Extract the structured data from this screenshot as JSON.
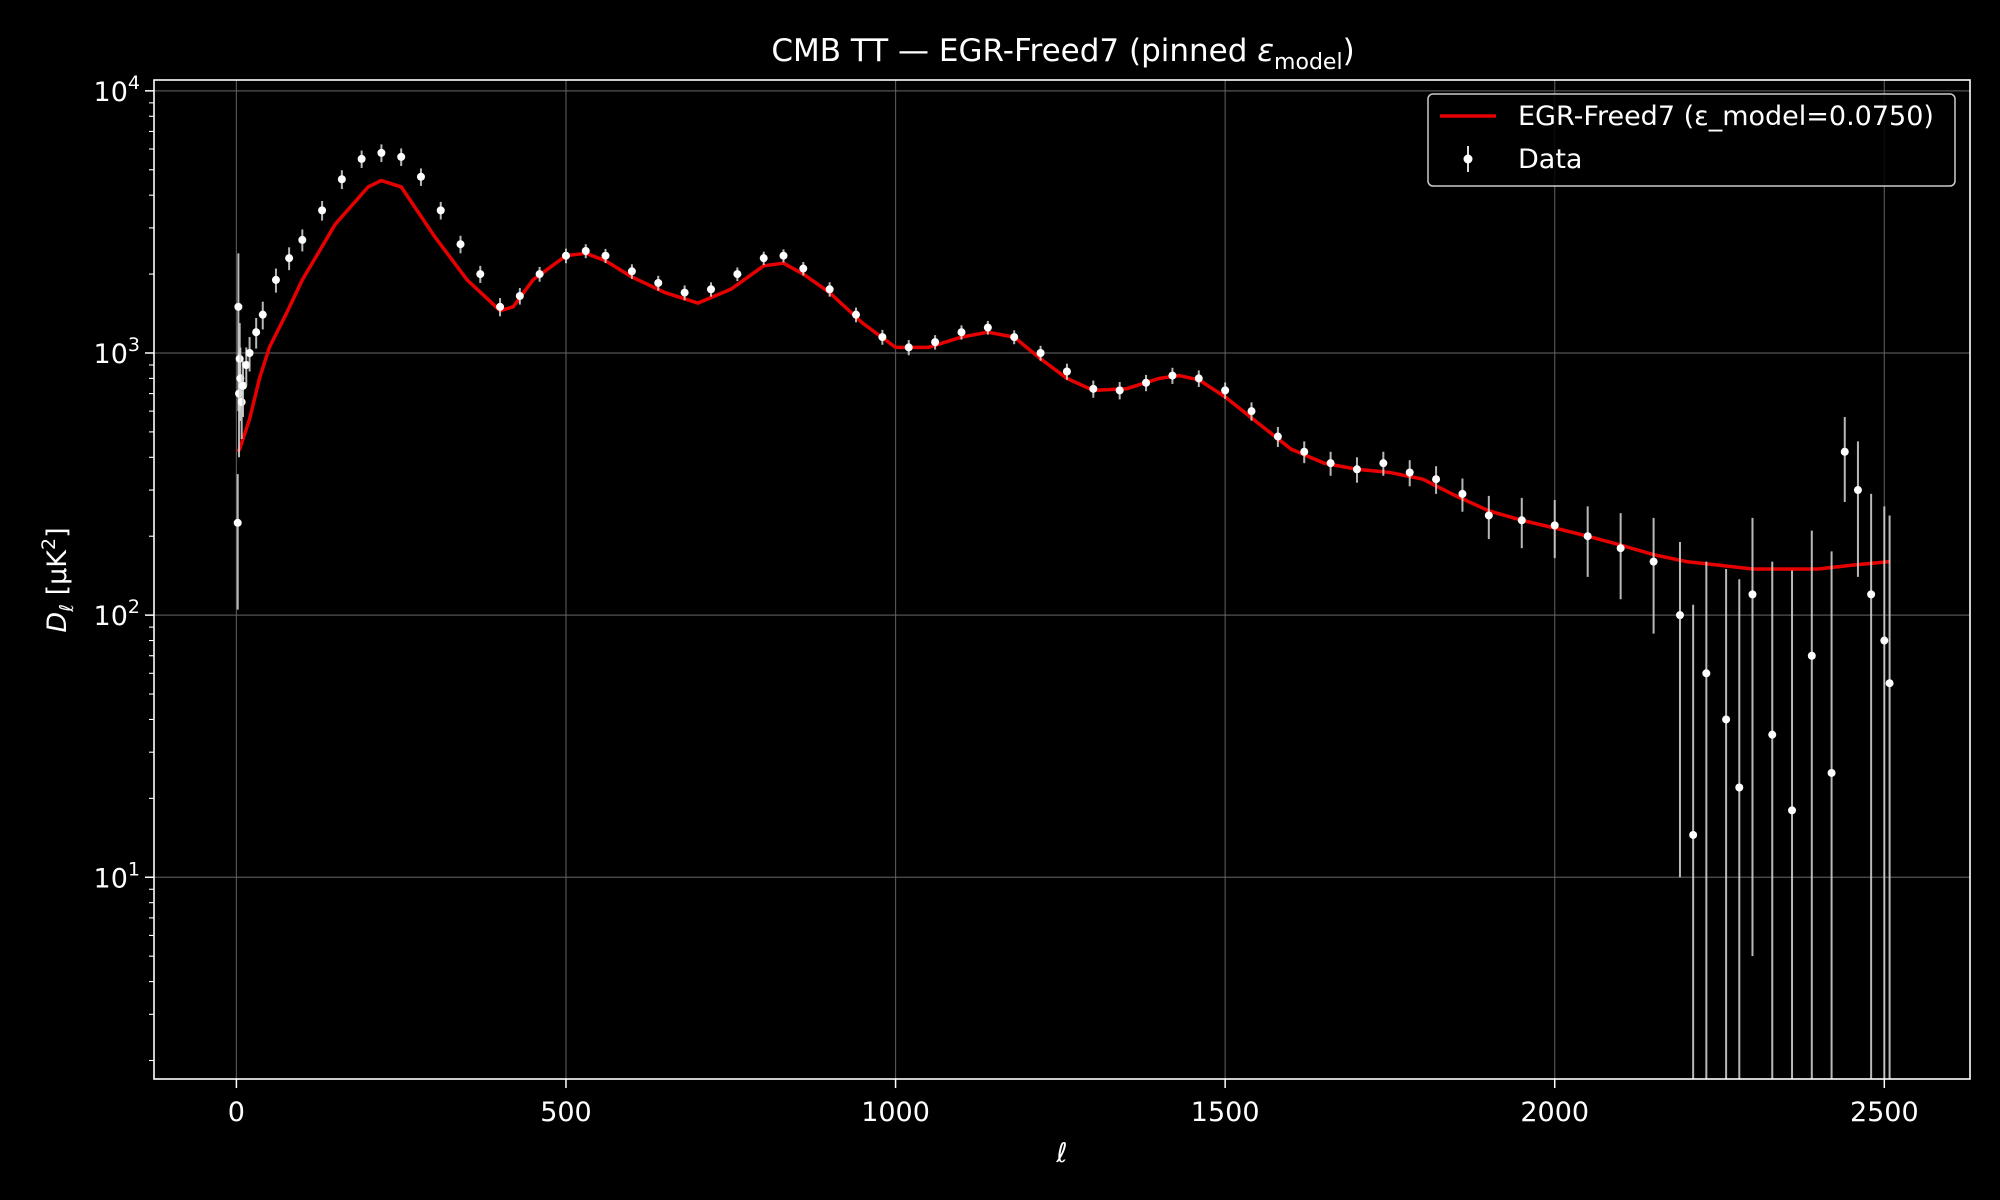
{
  "chart_data": {
    "type": "scatter",
    "title_main": "CMB TT — EGR-Freed7 (pinned ",
    "title_symbol": "ε",
    "title_subscript": "model",
    "title_close": ")",
    "xlabel": "ℓ",
    "ylabel_main": "D",
    "ylabel_sub": "ℓ",
    "ylabel_units": " [μK",
    "ylabel_sup": "2",
    "ylabel_close": "]",
    "xlim": [
      -125,
      2630
    ],
    "ylim": [
      1.7,
      11000
    ],
    "yscale": "log",
    "grid": true,
    "legend_position": "top-right",
    "x_ticks": [
      0,
      500,
      1000,
      1500,
      2000,
      2500
    ],
    "x_tick_labels": [
      "0",
      "500",
      "1000",
      "1500",
      "2000",
      "2500"
    ],
    "y_ticks": [
      10,
      100,
      1000,
      10000
    ],
    "y_tick_base": "10",
    "y_tick_exponents": [
      "1",
      "2",
      "3",
      "4"
    ],
    "colors": {
      "background": "#000000",
      "model": "#e60000",
      "data": "#ffffff",
      "grid": "#666666"
    },
    "series": [
      {
        "name": "EGR-Freed7 (ε_model=0.0750)",
        "style": "line",
        "x": [
          2,
          5,
          10,
          20,
          35,
          50,
          75,
          100,
          150,
          200,
          220,
          250,
          300,
          350,
          400,
          420,
          450,
          500,
          530,
          560,
          600,
          650,
          700,
          750,
          800,
          830,
          860,
          900,
          950,
          1000,
          1050,
          1100,
          1140,
          1180,
          1220,
          1260,
          1300,
          1350,
          1400,
          1430,
          1460,
          1500,
          1550,
          1600,
          1650,
          1700,
          1750,
          1800,
          1850,
          1900,
          1950,
          2000,
          2050,
          2100,
          2150,
          2200,
          2250,
          2300,
          2350,
          2400,
          2450,
          2508
        ],
        "y": [
          420,
          430,
          470,
          560,
          800,
          1050,
          1400,
          1900,
          3100,
          4300,
          4550,
          4300,
          2800,
          1900,
          1450,
          1500,
          1900,
          2350,
          2400,
          2250,
          1950,
          1700,
          1550,
          1750,
          2150,
          2200,
          2000,
          1700,
          1300,
          1050,
          1050,
          1150,
          1200,
          1150,
          950,
          800,
          720,
          730,
          800,
          820,
          790,
          680,
          540,
          430,
          380,
          360,
          350,
          330,
          285,
          250,
          230,
          215,
          200,
          185,
          170,
          160,
          155,
          150,
          150,
          150,
          155,
          160
        ]
      },
      {
        "name": "Data",
        "style": "points-with-errorbars",
        "x": [
          2,
          3,
          4,
          5,
          6,
          8,
          10,
          15,
          20,
          30,
          40,
          60,
          80,
          100,
          130,
          160,
          190,
          220,
          250,
          280,
          310,
          340,
          370,
          400,
          430,
          460,
          500,
          530,
          560,
          600,
          640,
          680,
          720,
          760,
          800,
          830,
          860,
          900,
          940,
          980,
          1020,
          1060,
          1100,
          1140,
          1180,
          1220,
          1260,
          1300,
          1340,
          1380,
          1420,
          1460,
          1500,
          1540,
          1580,
          1620,
          1660,
          1700,
          1740,
          1780,
          1820,
          1860,
          1900,
          1950,
          2000,
          2050,
          2100,
          2150,
          2190,
          2210,
          2230,
          2260,
          2280,
          2300,
          2330,
          2360,
          2390,
          2420,
          2440,
          2460,
          2480,
          2500,
          2508
        ],
        "y": [
          225,
          1500,
          700,
          950,
          800,
          650,
          750,
          900,
          1000,
          1200,
          1400,
          1900,
          2300,
          2700,
          3500,
          4600,
          5500,
          5800,
          5600,
          4700,
          3500,
          2600,
          2000,
          1500,
          1650,
          2000,
          2350,
          2450,
          2350,
          2050,
          1850,
          1700,
          1750,
          2000,
          2300,
          2350,
          2100,
          1750,
          1400,
          1150,
          1050,
          1100,
          1200,
          1250,
          1150,
          1000,
          850,
          730,
          720,
          770,
          820,
          800,
          720,
          600,
          480,
          420,
          380,
          360,
          380,
          350,
          330,
          290,
          240,
          230,
          220,
          200,
          180,
          160,
          100,
          14.5,
          60,
          40,
          22,
          120,
          35,
          18,
          70,
          25,
          420,
          300,
          120,
          80,
          55
        ],
        "yerr": [
          120,
          900,
          300,
          350,
          250,
          180,
          180,
          150,
          150,
          160,
          170,
          200,
          230,
          260,
          300,
          380,
          420,
          450,
          430,
          360,
          270,
          200,
          150,
          120,
          120,
          130,
          150,
          150,
          145,
          130,
          120,
          110,
          110,
          120,
          135,
          135,
          125,
          110,
          90,
          75,
          70,
          70,
          75,
          75,
          70,
          65,
          60,
          55,
          55,
          55,
          58,
          58,
          52,
          48,
          42,
          40,
          40,
          40,
          40,
          40,
          40,
          42,
          45,
          50,
          55,
          60,
          65,
          75,
          90,
          95,
          100,
          110,
          115,
          115,
          125,
          130,
          140,
          150,
          150,
          160,
          170,
          180,
          185
        ]
      }
    ]
  }
}
